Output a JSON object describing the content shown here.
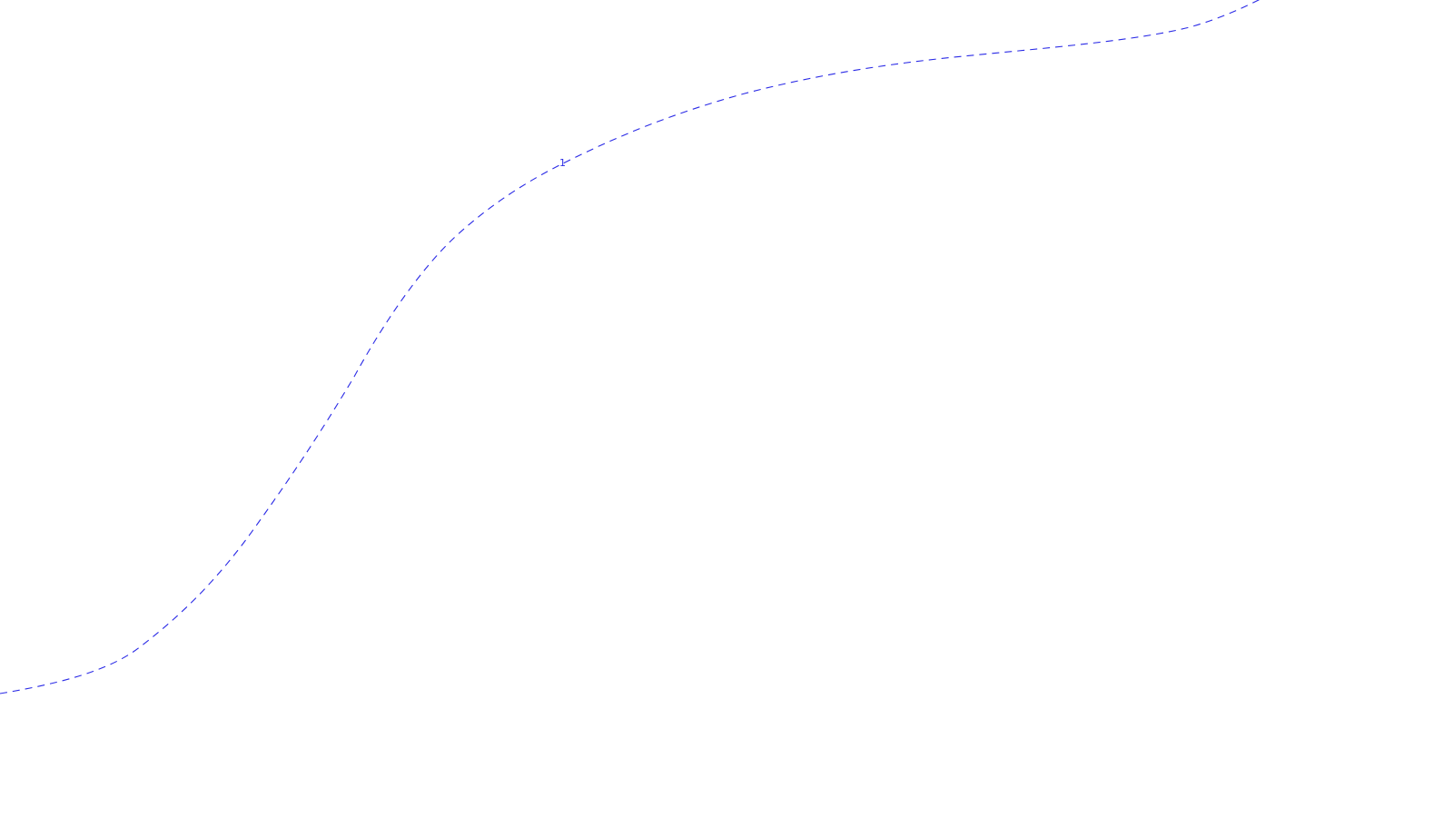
{
  "map": {
    "background_color": "#ffffff",
    "feature": {
      "type": "dashed-boundary-line",
      "color": "#2a2ae6",
      "label": "1"
    }
  }
}
